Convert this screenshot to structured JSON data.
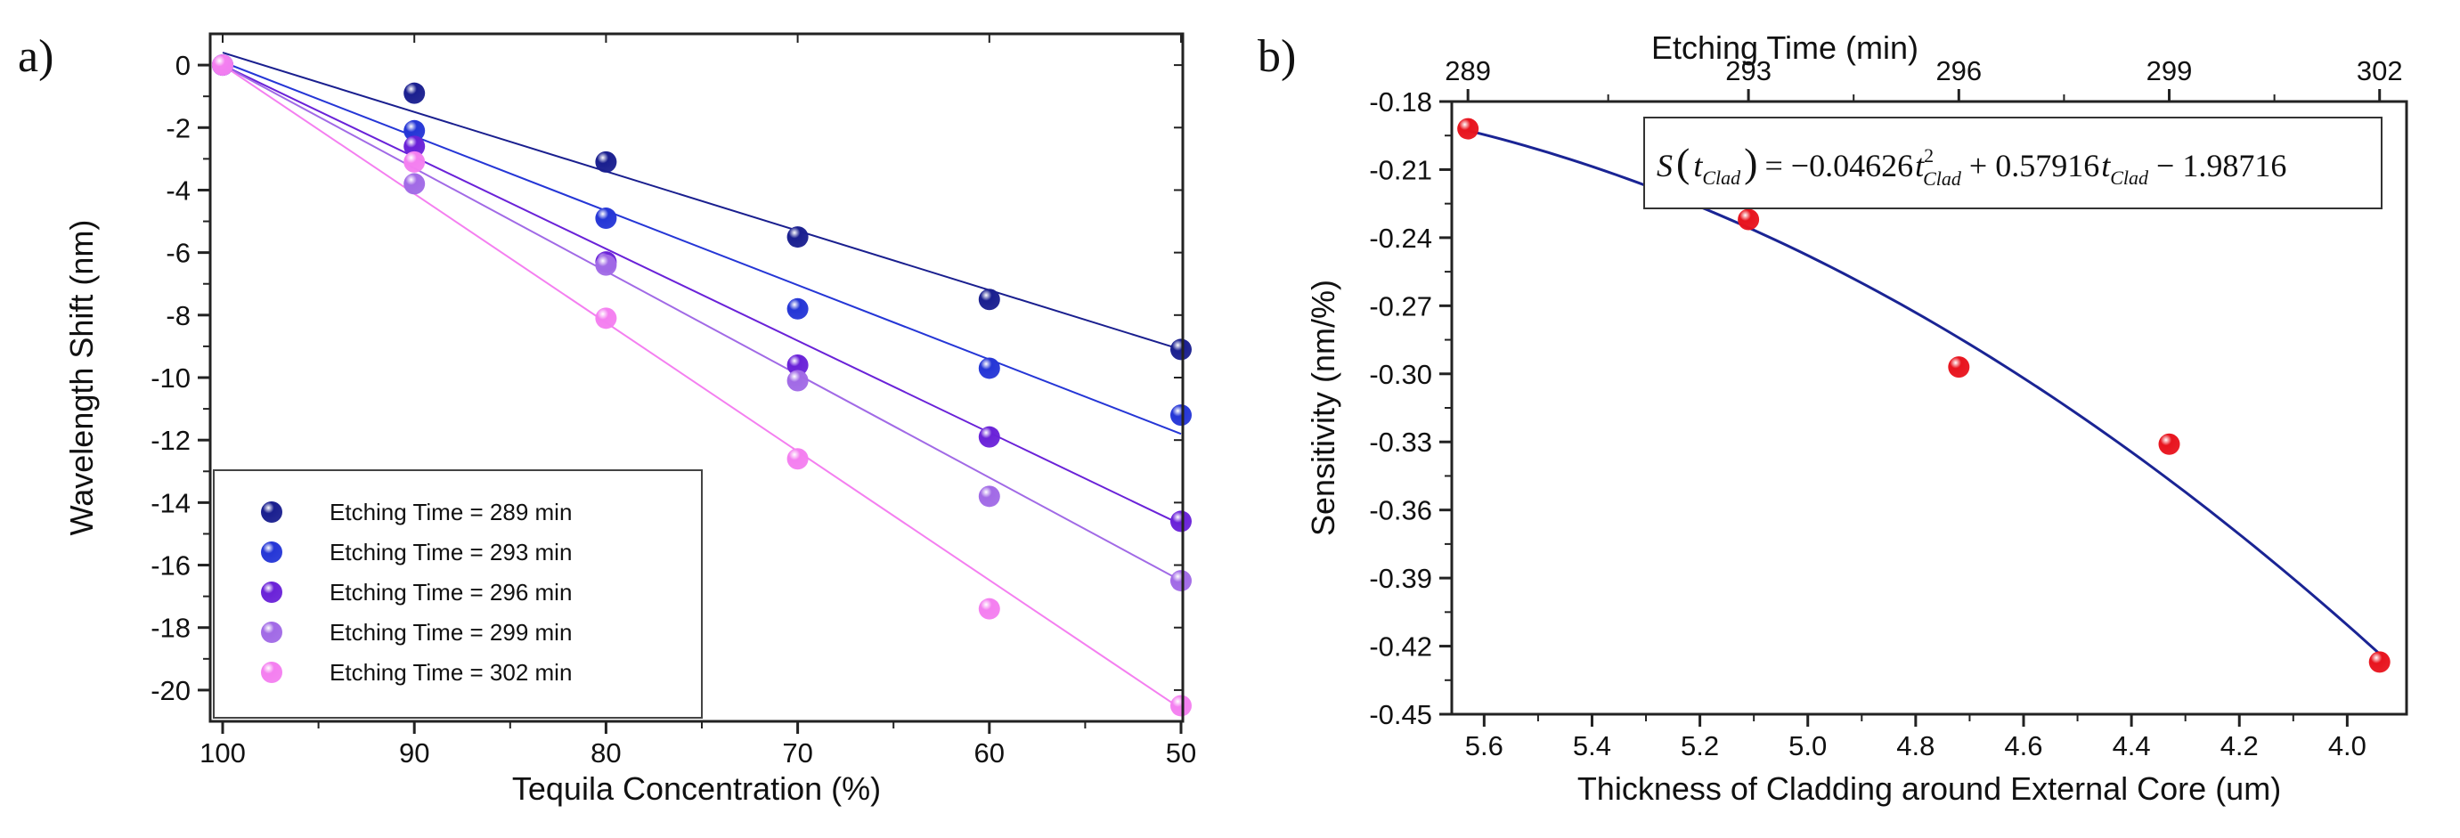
{
  "chart_data": [
    {
      "panel_label": "a)",
      "type": "scatter",
      "title": "",
      "xlabel": "Tequila Concentration (%)",
      "ylabel": "Wavelength Shift (nm)",
      "xlim": [
        100,
        50
      ],
      "ylim": [
        -21,
        1
      ],
      "x_ticks": [
        100,
        90,
        80,
        70,
        60,
        50
      ],
      "y_ticks": [
        0,
        -2,
        -4,
        -6,
        -8,
        -10,
        -12,
        -14,
        -16,
        -18,
        -20
      ],
      "x": [
        100,
        90,
        80,
        70,
        60,
        50
      ],
      "legend_position": "bottom-left",
      "series": [
        {
          "name": "Etching Time = 289 min",
          "color": "#1a1f8f",
          "values": [
            0.0,
            -0.9,
            -3.1,
            -5.5,
            -7.5,
            -9.1
          ],
          "fit": [
            0.4,
            -9.1
          ]
        },
        {
          "name": "Etching Time = 293 min",
          "color": "#2536d6",
          "values": [
            0.0,
            -2.1,
            -4.9,
            -7.8,
            -9.7,
            -11.2
          ],
          "fit": [
            0.1,
            -11.8
          ]
        },
        {
          "name": "Etching Time = 296 min",
          "color": "#6a22d8",
          "values": [
            0.0,
            -2.6,
            -6.3,
            -9.6,
            -11.9,
            -14.6
          ],
          "fit": [
            0.0,
            -14.7
          ]
        },
        {
          "name": "Etching Time = 299 min",
          "color": "#a16ae6",
          "values": [
            0.0,
            -3.8,
            -6.4,
            -10.1,
            -13.8,
            -16.5
          ],
          "fit": [
            0.0,
            -16.5
          ]
        },
        {
          "name": "Etching Time = 302 min",
          "color": "#f47ff0",
          "values": [
            0.0,
            -3.1,
            -8.1,
            -12.6,
            -17.4,
            -20.5
          ],
          "fit": [
            0.0,
            -20.6
          ]
        }
      ]
    },
    {
      "panel_label": "b)",
      "type": "scatter",
      "title": "",
      "xlabel": "Thickness of Cladding around External Core (um)",
      "ylabel": "Sensitivity (nm/%)",
      "top_xlabel": "Etching Time (min)",
      "xlim": [
        5.66,
        3.89
      ],
      "ylim": [
        -0.45,
        -0.18
      ],
      "x_ticks": [
        5.6,
        5.4,
        5.2,
        5.0,
        4.8,
        4.6,
        4.4,
        4.2,
        4.0
      ],
      "x_tick_labels": [
        "5.6",
        "5.4",
        "5.2",
        "5.0",
        "4.8",
        "4.6",
        "4.4",
        "4.2",
        "4.0"
      ],
      "y_ticks": [
        -0.18,
        -0.21,
        -0.24,
        -0.27,
        -0.3,
        -0.33,
        -0.36,
        -0.39,
        -0.42,
        -0.45
      ],
      "y_tick_labels": [
        "-0.18",
        "-0.21",
        "-0.24",
        "-0.27",
        "-0.30",
        "-0.33",
        "-0.36",
        "-0.39",
        "-0.42",
        "-0.45"
      ],
      "top_ticks": [
        {
          "x": 5.63,
          "label": "289"
        },
        {
          "x": 5.11,
          "label": "293"
        },
        {
          "x": 4.72,
          "label": "296"
        },
        {
          "x": 4.33,
          "label": "299"
        },
        {
          "x": 3.94,
          "label": "302"
        }
      ],
      "points": {
        "color": "#e8141e",
        "x": [
          5.63,
          5.11,
          4.72,
          4.33,
          3.94
        ],
        "y": [
          -0.192,
          -0.232,
          -0.297,
          -0.331,
          -0.427
        ]
      },
      "fit": {
        "color": "#1a2494",
        "coefficients": [
          -0.04626,
          0.57916,
          -1.98716
        ],
        "x_range": [
          5.63,
          3.94
        ],
        "equation": {
          "lhs_s": "S",
          "lhs_arg": "t",
          "lhs_sub": "Clad",
          "eq": "= −0.04626",
          "t1": "t",
          "sub1": "Clad",
          "sup1": "2",
          "mid": " + 0.57916",
          "t2": "t",
          "sub2": "Clad",
          "tail": " − 1.98716"
        }
      }
    }
  ]
}
